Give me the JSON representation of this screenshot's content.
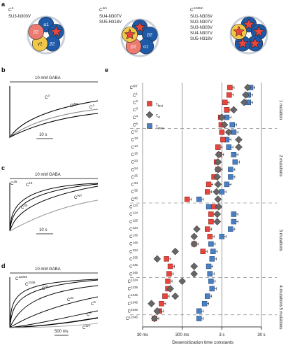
{
  "panel_labels": {
    "a": "a",
    "b": "b",
    "c": "c",
    "d": "d",
    "e": "e"
  },
  "panel_a": {
    "constructs": [
      {
        "name": "C",
        "sup": "3",
        "lines": [
          "SU3-N303V"
        ]
      },
      {
        "name": "C",
        "sup": "4m",
        "lines": [
          "SU4-N307V",
          "SU5-H318V"
        ]
      },
      {
        "name": "C",
        "sup": "1245m",
        "lines": [
          "SU1-N303V",
          "SU2-N307V",
          "SU3-N303V",
          "SU4-N307V",
          "SU5-H318V"
        ]
      }
    ],
    "subunits": {
      "a1": "α1",
      "b2": "β2",
      "g2": "γ2"
    },
    "colors": {
      "red": "#e8453c",
      "blue": "#1e5aa8",
      "yellow": "#f2c84b",
      "pink": "#ec7a70",
      "ring": "#c9cfdb"
    }
  },
  "panel_b": {
    "condition": "10 mM GABA",
    "scalebar": "10 s",
    "traces": [
      {
        "name": "C",
        "sup": "3"
      },
      {
        "name": "C",
        "sup": "WT"
      },
      {
        "name": "C",
        "sup": "4"
      }
    ]
  },
  "panel_c": {
    "condition": "10 mM GABA",
    "scalebar": "10 s",
    "traces": [
      {
        "name": "C",
        "sup": "36"
      },
      {
        "name": "C",
        "sup": "15"
      },
      {
        "name": "C",
        "sup": "34"
      },
      {
        "name": "C",
        "sup": "WT"
      }
    ]
  },
  "panel_d": {
    "condition": "10 mM GABA",
    "scalebar": "500 ms",
    "traces": [
      {
        "name": "C",
        "sup": "12345"
      },
      {
        "name": "C",
        "sup": "2345"
      },
      {
        "name": "C",
        "sup": "35"
      },
      {
        "name": "C",
        "sup": "34"
      },
      {
        "name": "C",
        "sup": "5"
      },
      {
        "name": "C",
        "sup": "4"
      },
      {
        "name": "C",
        "sup": "WT"
      }
    ]
  },
  "chart_data": {
    "type": "scatter",
    "xlabel": "Desensitization time constants",
    "xscale": "log",
    "x_ticks": [
      "30 ms",
      "300 ms",
      "3 s",
      "30 s"
    ],
    "x_tick_values_s": [
      0.03,
      0.3,
      3,
      30
    ],
    "legend": [
      {
        "label": "τ",
        "sub": "fast",
        "color": "#e8453c",
        "marker": "square"
      },
      {
        "label": "τ",
        "sub": "w",
        "color": "#666666",
        "marker": "diamond"
      },
      {
        "label": "τ",
        "sub": "slow",
        "color": "#4a7fc1",
        "marker": "square"
      }
    ],
    "groups": [
      "1 mutation",
      "2 mutations",
      "3 mutations",
      "4 mutations",
      "5 mutations"
    ],
    "categories": [
      "C^WT",
      "C^1",
      "C^2",
      "C^3",
      "C^4",
      "C^5",
      "C^12",
      "C^13",
      "C^14",
      "C^15",
      "C^23",
      "C^24",
      "C^25",
      "C^34",
      "C^35",
      "C^45",
      "C^123",
      "C^124",
      "C^125",
      "C^134",
      "C^135",
      "C^145",
      "C^234",
      "C^235",
      "C^245",
      "C^345",
      "C^1234",
      "C^1235",
      "C^1245",
      "C^1345",
      "C^2345",
      "C^12345"
    ],
    "category_labels": [
      {
        "b": "C",
        "s": "WT"
      },
      {
        "b": "C",
        "s": "1"
      },
      {
        "b": "C",
        "s": "2"
      },
      {
        "b": "C",
        "s": "3"
      },
      {
        "b": "C",
        "s": "4"
      },
      {
        "b": "C",
        "s": "5"
      },
      {
        "b": "C",
        "s": "12"
      },
      {
        "b": "C",
        "s": "13"
      },
      {
        "b": "C",
        "s": "14"
      },
      {
        "b": "C",
        "s": "15"
      },
      {
        "b": "C",
        "s": "23"
      },
      {
        "b": "C",
        "s": "24"
      },
      {
        "b": "C",
        "s": "25"
      },
      {
        "b": "C",
        "s": "34"
      },
      {
        "b": "C",
        "s": "35"
      },
      {
        "b": "C",
        "s": "45"
      },
      {
        "b": "C",
        "s": "123"
      },
      {
        "b": "C",
        "s": "124"
      },
      {
        "b": "C",
        "s": "125"
      },
      {
        "b": "C",
        "s": "134"
      },
      {
        "b": "C",
        "s": "135"
      },
      {
        "b": "C",
        "s": "145"
      },
      {
        "b": "C",
        "s": "234"
      },
      {
        "b": "C",
        "s": "235"
      },
      {
        "b": "C",
        "s": "245"
      },
      {
        "b": "C",
        "s": "345"
      },
      {
        "b": "C",
        "s": "1234"
      },
      {
        "b": "C",
        "s": "1235"
      },
      {
        "b": "C",
        "s": "1245"
      },
      {
        "b": "C",
        "s": "1345"
      },
      {
        "b": "C",
        "s": "2345"
      },
      {
        "b": "C",
        "s": "12345"
      }
    ],
    "group_ranges": [
      [
        1,
        5
      ],
      [
        6,
        15
      ],
      [
        16,
        25
      ],
      [
        26,
        30
      ],
      [
        31,
        31
      ]
    ],
    "series": [
      {
        "name": "τfast",
        "values_s": [
          4.8,
          4.6,
          3.6,
          4.0,
          2.8,
          2.9,
          3.0,
          3.2,
          2.4,
          2.6,
          2.2,
          2.4,
          1.9,
          1.4,
          1.3,
          0.4,
          1.9,
          1.6,
          1.6,
          1.3,
          1.5,
          0.6,
          1.0,
          0.12,
          0.15,
          0.14,
          0.13,
          0.13,
          0.11,
          0.09,
          0.08,
          0.06
        ]
      },
      {
        "name": "τw",
        "values_s": [
          13.5,
          12.0,
          11.0,
          6.0,
          3.0,
          3.5,
          4.5,
          8.0,
          8.0,
          2.5,
          2.4,
          2.4,
          2.3,
          2.4,
          2.2,
          2.4,
          2.5,
          2.3,
          2.3,
          0.7,
          0.6,
          0.6,
          0.2,
          0.07,
          0.6,
          0.6,
          0.3,
          0.15,
          0.2,
          0.05,
          0.07,
          0.06
        ]
      },
      {
        "name": "τslow",
        "values_s": [
          16.0,
          14.0,
          14.0,
          4.0,
          4.0,
          5.5,
          6.0,
          4.0,
          4.5,
          6.0,
          6.5,
          5.0,
          5.0,
          4.0,
          3.0,
          0.8,
          1.4,
          6.0,
          6.0,
          5.0,
          3.0,
          1.6,
          1.8,
          1.7,
          1.4,
          1.5,
          1.6,
          1.7,
          1.3,
          1.1,
          0.8,
          0.8
        ]
      }
    ]
  }
}
